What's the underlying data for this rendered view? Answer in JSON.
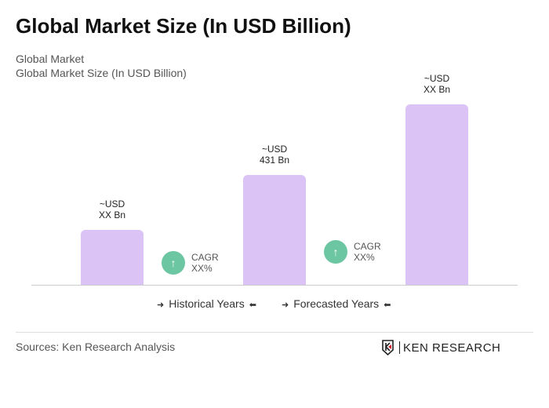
{
  "title": "Global Market Size (In USD Billion)",
  "subtitle1": "Global Market",
  "subtitle2": "Global Market Size (In USD Billion)",
  "chart_data": {
    "type": "bar",
    "categories": [
      "",
      "",
      ""
    ],
    "values": [
      215,
      431,
      708
    ],
    "data_labels": [
      [
        "~USD",
        "XX Bn"
      ],
      [
        "~USD",
        "431 Bn"
      ],
      [
        "~USD",
        "XX Bn"
      ]
    ],
    "bar_color": "#dcc3f6",
    "grid": false
  },
  "cagr": [
    {
      "label": "CAGR",
      "value": "XX%"
    },
    {
      "label": "CAGR",
      "value": "XX%"
    }
  ],
  "cagr_color": "#6cc6a2",
  "legend": {
    "historical": "Historical Years",
    "forecasted": "Forecasted Years"
  },
  "sources": "Sources: Ken Research Analysis",
  "logo": "KEN RESEARCH"
}
